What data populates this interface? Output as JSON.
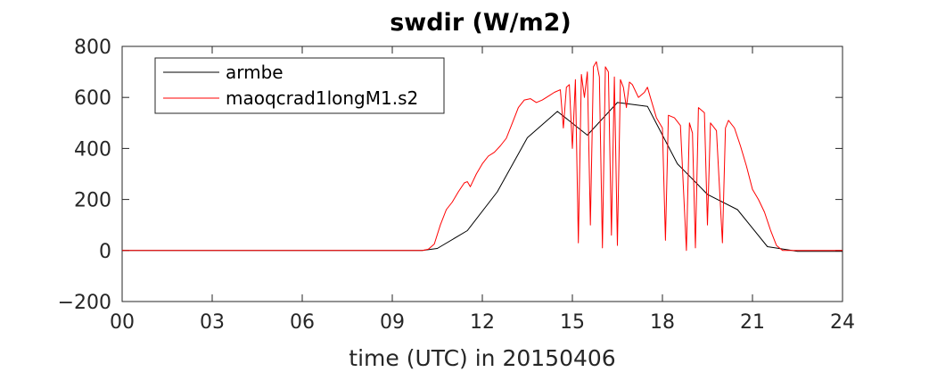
{
  "chart_data": {
    "type": "line",
    "title": "swdir  (W/m2)",
    "xlabel": "time (UTC) in 20150406",
    "ylabel": "",
    "xlim": [
      0,
      24
    ],
    "ylim": [
      -200,
      800
    ],
    "xticks": [
      0,
      3,
      6,
      9,
      12,
      15,
      18,
      21,
      24
    ],
    "xtick_labels": [
      "00",
      "03",
      "06",
      "09",
      "12",
      "15",
      "18",
      "21",
      "24"
    ],
    "yticks": [
      -200,
      0,
      200,
      400,
      600,
      800
    ],
    "ytick_labels": [
      "−200",
      "0",
      "200",
      "400",
      "600",
      "800"
    ],
    "grid": false,
    "legend_position": "top-left",
    "series": [
      {
        "name": "armbe",
        "color": "#000000",
        "x": [
          0,
          1,
          2,
          3,
          4,
          5,
          6,
          7,
          8,
          9,
          10,
          10.5,
          11.5,
          12.5,
          13.5,
          14.5,
          15.5,
          16.5,
          17.5,
          18.5,
          19.5,
          20.5,
          21.5,
          22.5,
          23.5,
          24
        ],
        "y": [
          0,
          0,
          0,
          0,
          0,
          0,
          0,
          0,
          0,
          0,
          0,
          8,
          78,
          230,
          442,
          545,
          452,
          580,
          565,
          340,
          220,
          160,
          15,
          -3,
          -3,
          -3
        ]
      },
      {
        "name": "maoqcrad1longM1.s2",
        "color": "#ff0000",
        "x": [
          0,
          1,
          2,
          3,
          4,
          5,
          6,
          7,
          8,
          9,
          10,
          10.2,
          10.4,
          10.6,
          10.8,
          11.0,
          11.2,
          11.4,
          11.5,
          11.6,
          11.8,
          12.0,
          12.2,
          12.4,
          12.6,
          12.8,
          13.0,
          13.2,
          13.4,
          13.6,
          13.8,
          14.0,
          14.2,
          14.4,
          14.6,
          14.7,
          14.8,
          14.9,
          15.0,
          15.1,
          15.2,
          15.3,
          15.4,
          15.5,
          15.6,
          15.7,
          15.8,
          15.9,
          16.0,
          16.1,
          16.2,
          16.3,
          16.4,
          16.5,
          16.6,
          16.7,
          16.8,
          16.9,
          17.0,
          17.2,
          17.4,
          17.5,
          17.6,
          17.8,
          18.0,
          18.1,
          18.2,
          18.4,
          18.6,
          18.8,
          18.9,
          19.0,
          19.1,
          19.2,
          19.4,
          19.5,
          19.6,
          19.8,
          20.0,
          20.1,
          20.2,
          20.4,
          20.6,
          20.8,
          21.0,
          21.2,
          21.4,
          21.6,
          21.8,
          22.0,
          22.5,
          23,
          24
        ],
        "y": [
          0,
          0,
          0,
          0,
          0,
          0,
          0,
          0,
          0,
          0,
          0,
          5,
          25,
          100,
          160,
          190,
          230,
          265,
          270,
          250,
          300,
          340,
          370,
          385,
          410,
          440,
          500,
          560,
          590,
          595,
          580,
          590,
          605,
          620,
          630,
          480,
          640,
          650,
          400,
          670,
          30,
          690,
          600,
          700,
          100,
          720,
          740,
          680,
          10,
          720,
          700,
          60,
          680,
          20,
          670,
          640,
          560,
          660,
          650,
          600,
          620,
          640,
          600,
          520,
          480,
          40,
          530,
          520,
          490,
          0,
          500,
          460,
          10,
          560,
          540,
          100,
          500,
          470,
          30,
          480,
          510,
          480,
          410,
          330,
          240,
          200,
          150,
          80,
          20,
          0,
          0,
          0,
          0
        ]
      }
    ]
  }
}
